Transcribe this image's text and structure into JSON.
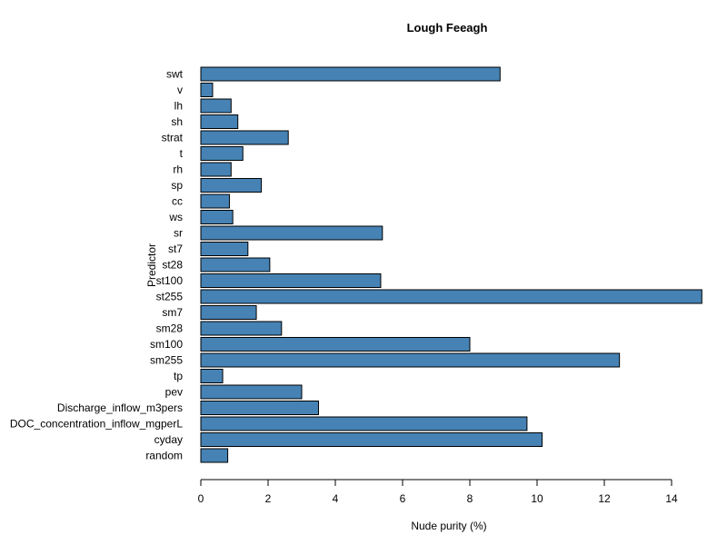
{
  "chart_data": {
    "type": "bar",
    "orientation": "horizontal",
    "title": "Lough Feeagh",
    "xlabel": "Nude purity (%)",
    "ylabel": "Predictor",
    "xlim": [
      0,
      15
    ],
    "xticks": [
      0,
      2,
      4,
      6,
      8,
      10,
      12,
      14
    ],
    "grid": false,
    "legend": "none",
    "bar_color": "#4682B4",
    "categories": [
      "swt",
      "v",
      "lh",
      "sh",
      "strat",
      "t",
      "rh",
      "sp",
      "cc",
      "ws",
      "sr",
      "st7",
      "st28",
      "st100",
      "st255",
      "sm7",
      "sm28",
      "sm100",
      "sm255",
      "tp",
      "pev",
      "Discharge_inflow_m3pers",
      "DOC_concentration_inflow_mgperL",
      "cyday",
      "random"
    ],
    "values": [
      8.9,
      0.35,
      0.9,
      1.1,
      2.6,
      1.25,
      0.9,
      1.8,
      0.85,
      0.95,
      5.4,
      1.4,
      2.05,
      5.35,
      14.9,
      1.65,
      2.4,
      8.0,
      12.45,
      0.65,
      3.0,
      3.5,
      9.7,
      10.15,
      0.8
    ]
  }
}
